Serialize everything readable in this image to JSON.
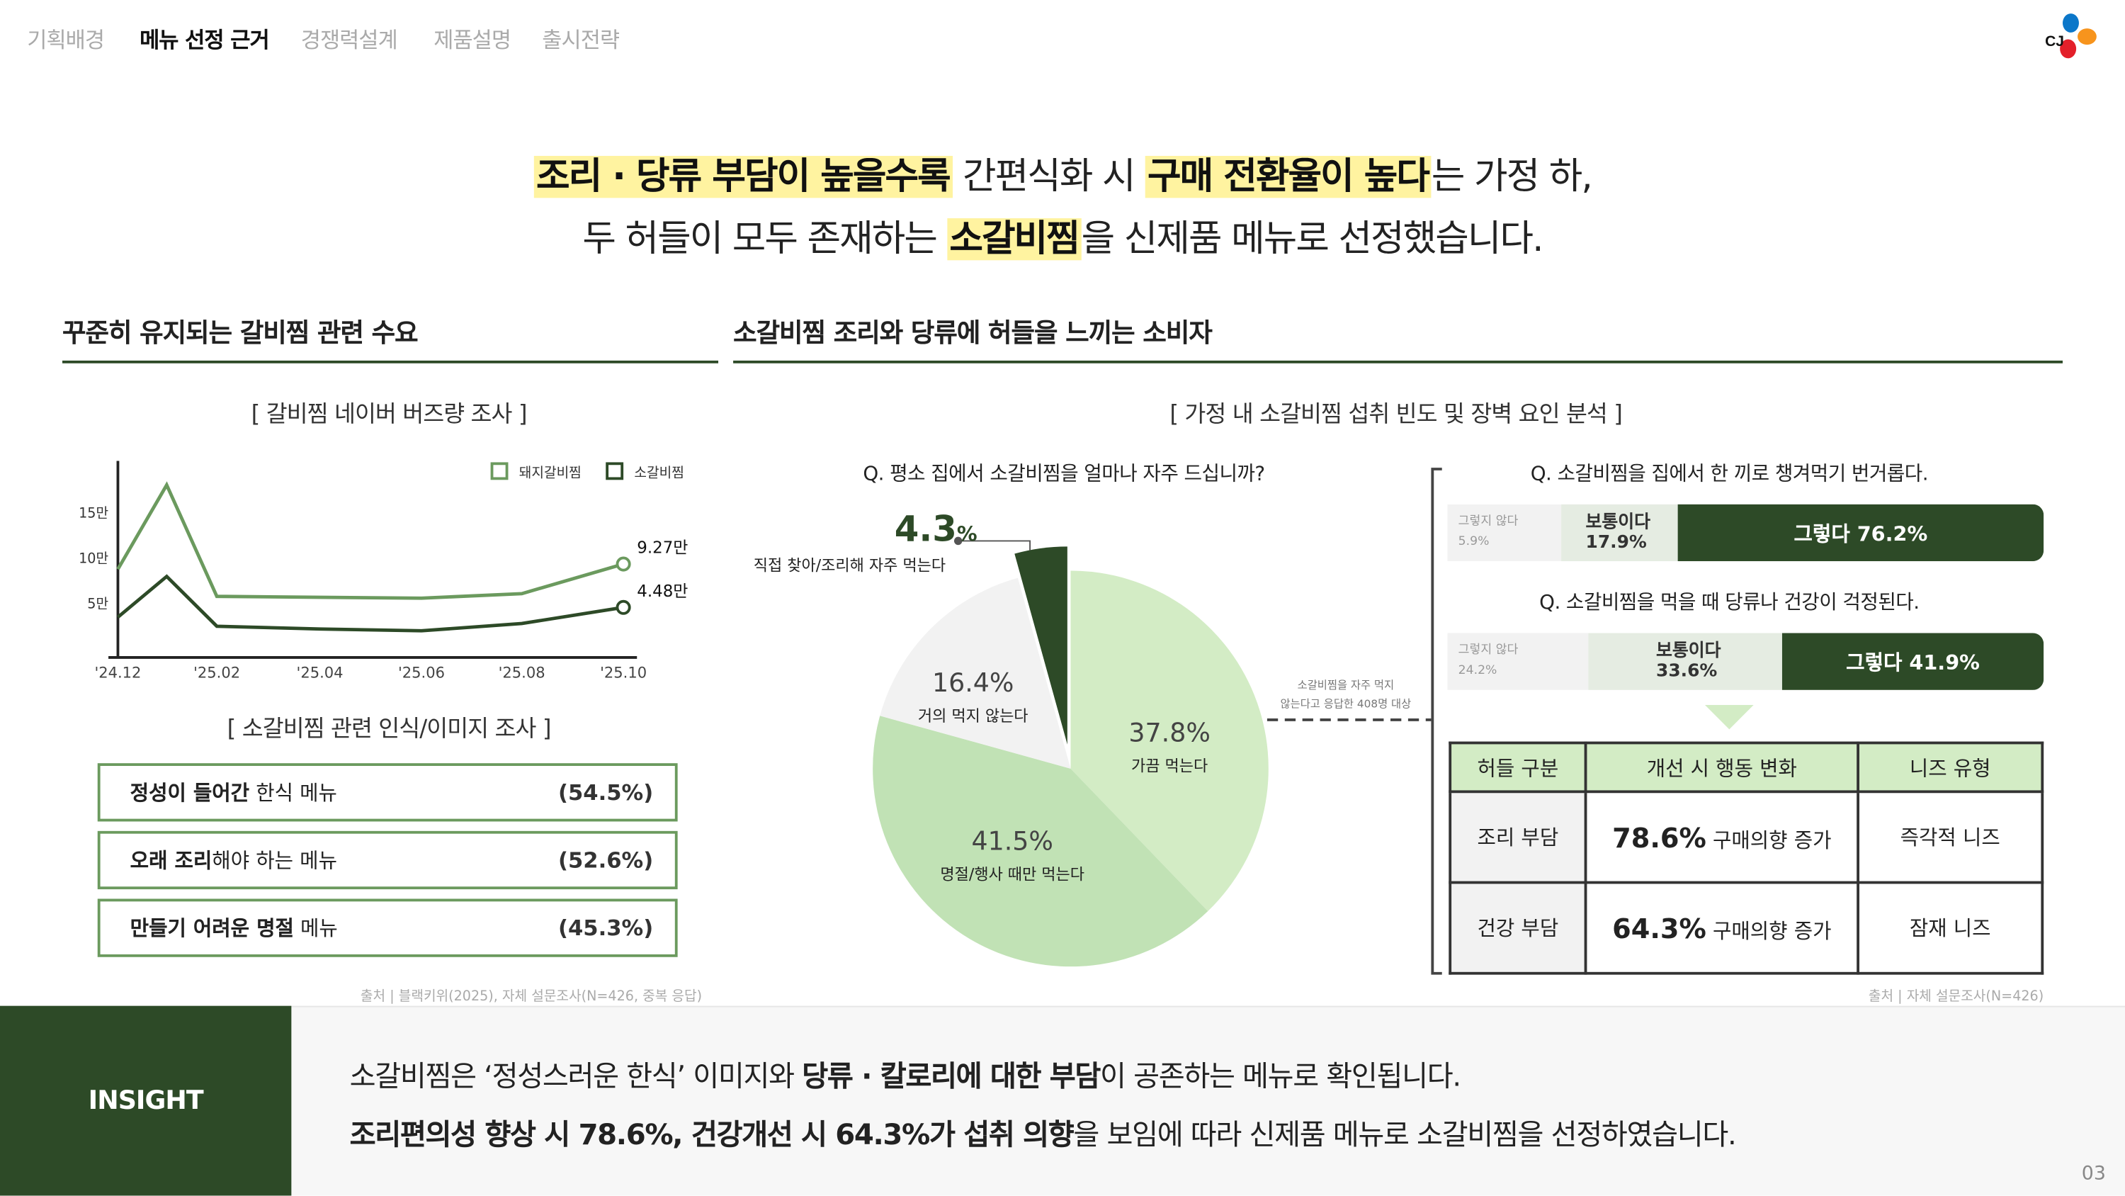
{
  "nav": {
    "tabs": [
      {
        "label": "기획배경",
        "active": false
      },
      {
        "label": "메뉴 선정 근거",
        "active": true
      },
      {
        "label": "경쟁력설계",
        "active": false
      },
      {
        "label": "제품설명",
        "active": false
      },
      {
        "label": "출시전략",
        "active": false
      }
    ]
  },
  "logo": {
    "text": "CJ",
    "petal_colors": [
      "#0b77c9",
      "#f7941d",
      "#e3202a"
    ]
  },
  "headline": {
    "line1": {
      "hl1": "조리 · 당류 부담이 높을수록",
      "t1": " 간편식화 시 ",
      "hl2": "구매 전환율이 높다",
      "t2": "는 가정 하,"
    },
    "line2": {
      "t1": "두 허들이 모두 존재하는 ",
      "hl1": "소갈비찜",
      "t2": "을 신제품 메뉴로 선정했습니다."
    }
  },
  "left": {
    "title": "꾸준히 유지되는 갈비찜 관련 수요",
    "chart_subtitle": "[ 갈비찜 네이버 버즈량 조사 ]",
    "image_subtitle": "[ 소갈비찜 관련 인식/이미지 조사 ]",
    "perceptions": [
      {
        "bold": "정성이 들어간",
        "rest": " 한식 메뉴",
        "pct": "(54.5%)"
      },
      {
        "bold": "오래 조리",
        "rest": "해야 하는 메뉴",
        "pct": "(52.6%)"
      },
      {
        "bold": "만들기 어려운 명절",
        "rest": " 메뉴",
        "pct": "(45.3%)"
      }
    ],
    "source": "출처 | 블랙키위(2025), 자체 설문조사(N=426, 중복 응답)"
  },
  "right": {
    "title": "소갈비찜 조리와 당류에 허들을 느끼는 소비자",
    "subtitle": "[ 가정 내 소갈비찜 섭취 빈도 및 장벽 요인 분석 ]",
    "pie_question": "Q. 평소 집에서 소갈비찜을 얼마나 자주 드십니까?",
    "pie_note_line1": "소갈비찜을 자주 먹지",
    "pie_note_line2": "않는다고 응답한 408명 대상",
    "bars": [
      {
        "question": "Q. 소갈비찜을 집에서 한 끼로 챙겨먹기 번거롭다.",
        "no_label": "그렇지 않다",
        "no": "5.9%",
        "mid_label": "보통이다",
        "mid": "17.9%",
        "yes": "그렇다 76.2%"
      },
      {
        "question": "Q. 소갈비찜을 먹을 때 당류나 건강이 걱정된다.",
        "no_label": "그렇지 않다",
        "no": "24.2%",
        "mid_label": "보통이다",
        "mid": "33.6%",
        "yes": "그렇다 41.9%"
      }
    ],
    "table": {
      "headers": [
        "허들 구분",
        "개선 시 행동 변화",
        "니즈 유형"
      ],
      "rows": [
        {
          "hurdle": "조리 부담",
          "value": "78.6%",
          "change": " 구매의향 증가",
          "need": "즉각적 니즈"
        },
        {
          "hurdle": "건강 부담",
          "value": "64.3%",
          "change": " 구매의향 증가",
          "need": "잠재 니즈"
        }
      ]
    },
    "source": "출처 | 자체 설문조사(N=426)"
  },
  "insight": {
    "label": "INSIGHT",
    "line1": {
      "t1": "소갈비찜은 ‘정성스러운 한식’ 이미지와 ",
      "b1": "당류 · 칼로리에 대한 부담",
      "t2": "이 공존하는 메뉴로 확인됩니다."
    },
    "line2": {
      "b1": "조리편의성 향상 시 78.6%, 건강개선 시 64.3%가 섭취 의향",
      "t1": "을 보임에 따라 신제품 메뉴로 소갈비찜을 선정하였습니다."
    }
  },
  "page_number": "03",
  "colors": {
    "dark_green": "#2d4a27",
    "mid_green": "#6b9a5e",
    "light_green": "#d3ecc5",
    "highlight": "#fff3a0"
  },
  "chart_data": [
    {
      "type": "line",
      "x": [
        "'24.12",
        "'25.01",
        "'25.02",
        "'25.04",
        "'25.06",
        "'25.08",
        "'25.10"
      ],
      "xticks": [
        "'24.12",
        "'25.02",
        "'25.04",
        "'25.06",
        "'25.08",
        "'25.10"
      ],
      "yticks": [
        "5만",
        "10만",
        "15만"
      ],
      "ylabel": "",
      "xlabel": "",
      "unit": "만",
      "legend": "top-right",
      "series": [
        {
          "name": "돼지갈비찜",
          "color": "#6b9a5e",
          "values": [
            8.7,
            18.0,
            5.7,
            5.6,
            5.5,
            6.0,
            9.27
          ],
          "end_label": "9.27만"
        },
        {
          "name": "소갈비찜",
          "color": "#2d4a27",
          "values": [
            3.4,
            7.9,
            2.4,
            2.1,
            1.9,
            2.7,
            4.48
          ],
          "end_label": "4.48만"
        }
      ]
    },
    {
      "type": "pie",
      "slices": [
        {
          "label": "가끔 먹는다",
          "value": 37.8,
          "text": "37.8%",
          "color": "#d3ecc5"
        },
        {
          "label": "명절/행사 때만 먹는다",
          "value": 41.5,
          "text": "41.5%",
          "color": "#c1e2b5"
        },
        {
          "label": "거의 먹지 않는다",
          "value": 16.4,
          "text": "16.4%",
          "color": "#f2f2f2"
        },
        {
          "label": "직접 찾아/조리해 자주 먹는다",
          "value": 4.3,
          "text": "4.3",
          "pct_sign": "%",
          "color": "#2d4a27",
          "exploded": true
        }
      ]
    }
  ]
}
